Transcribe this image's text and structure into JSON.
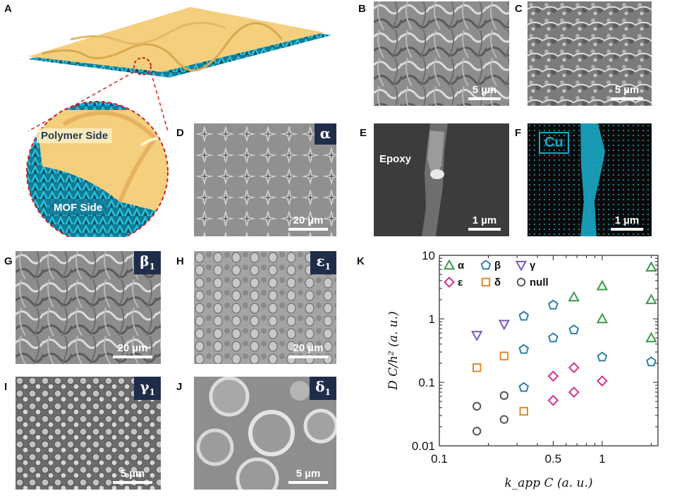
{
  "panels": {
    "A": "A",
    "B": "B",
    "C": "C",
    "D": "D",
    "E": "E",
    "F": "F",
    "G": "G",
    "H": "H",
    "I": "I",
    "J": "J",
    "K": "K"
  },
  "panelA": {
    "polymer_label": "Polymer Side",
    "mof_label": "MOF Side"
  },
  "scale": {
    "B": "5 µm",
    "C": "5 µm",
    "D": "20 µm",
    "E": "1 µm",
    "F": "1 µm",
    "G": "20 µm",
    "H": "20 µm",
    "I": "5 µm",
    "J": "5 µm"
  },
  "tags": {
    "D": "α",
    "G_base": "β",
    "G_sub": "1",
    "H_base": "ε",
    "H_sub": "1",
    "I_base": "γ",
    "I_sub": "1",
    "J_base": "δ",
    "J_sub": "1"
  },
  "panelE": {
    "label": "Epoxy"
  },
  "panelF": {
    "label": "Cu"
  },
  "colors": {
    "alpha": "#3a9a4a",
    "beta": "#2f7fa8",
    "gamma": "#7a58b8",
    "epsilon": "#d0338f",
    "delta": "#d98a2c",
    "null": "#555555",
    "mof": "#1aa7c4",
    "polymer": "#f4cf7e",
    "tag_bg": "#1f2d4a",
    "zoom_circle": "#d02020"
  },
  "chart_data": {
    "type": "scatter",
    "title": "",
    "xlabel": "k_app C (a. u.)",
    "ylabel": "D C/h² (a. u.)",
    "xscale": "log",
    "yscale": "log",
    "xlim": [
      0.1,
      2.2
    ],
    "ylim": [
      0.01,
      10
    ],
    "xticks": [
      "0.1",
      "0.5",
      "1"
    ],
    "yticks": [
      "0.01",
      "0.1",
      "1",
      "10"
    ],
    "legend_position": "top",
    "series": [
      {
        "name": "α",
        "marker": "triangle-up",
        "color": "#3a9a4a",
        "points": [
          [
            0.67,
            2.2
          ],
          [
            1.0,
            3.3
          ],
          [
            1.0,
            1.0
          ],
          [
            2.0,
            6.5
          ],
          [
            2.0,
            2.0
          ],
          [
            2.0,
            0.5
          ]
        ]
      },
      {
        "name": "β",
        "marker": "pentagon",
        "color": "#2f7fa8",
        "points": [
          [
            0.33,
            1.1
          ],
          [
            0.33,
            0.33
          ],
          [
            0.33,
            0.083
          ],
          [
            0.5,
            1.65
          ],
          [
            0.5,
            0.5
          ],
          [
            0.67,
            0.67
          ],
          [
            1.0,
            0.25
          ],
          [
            2.0,
            0.21
          ]
        ]
      },
      {
        "name": "γ",
        "marker": "triangle-down",
        "color": "#7a58b8",
        "points": [
          [
            0.17,
            0.55
          ],
          [
            0.25,
            0.82
          ]
        ]
      },
      {
        "name": "ε",
        "marker": "diamond",
        "color": "#d0338f",
        "points": [
          [
            0.5,
            0.125
          ],
          [
            0.5,
            0.052
          ],
          [
            0.67,
            0.17
          ],
          [
            0.67,
            0.07
          ],
          [
            1.0,
            0.105
          ]
        ]
      },
      {
        "name": "δ",
        "marker": "square",
        "color": "#d98a2c",
        "points": [
          [
            0.17,
            0.17
          ],
          [
            0.25,
            0.26
          ],
          [
            0.33,
            0.035
          ]
        ]
      },
      {
        "name": "null",
        "marker": "circle",
        "color": "#555555",
        "points": [
          [
            0.17,
            0.042
          ],
          [
            0.17,
            0.017
          ],
          [
            0.25,
            0.062
          ],
          [
            0.25,
            0.026
          ]
        ]
      }
    ]
  }
}
